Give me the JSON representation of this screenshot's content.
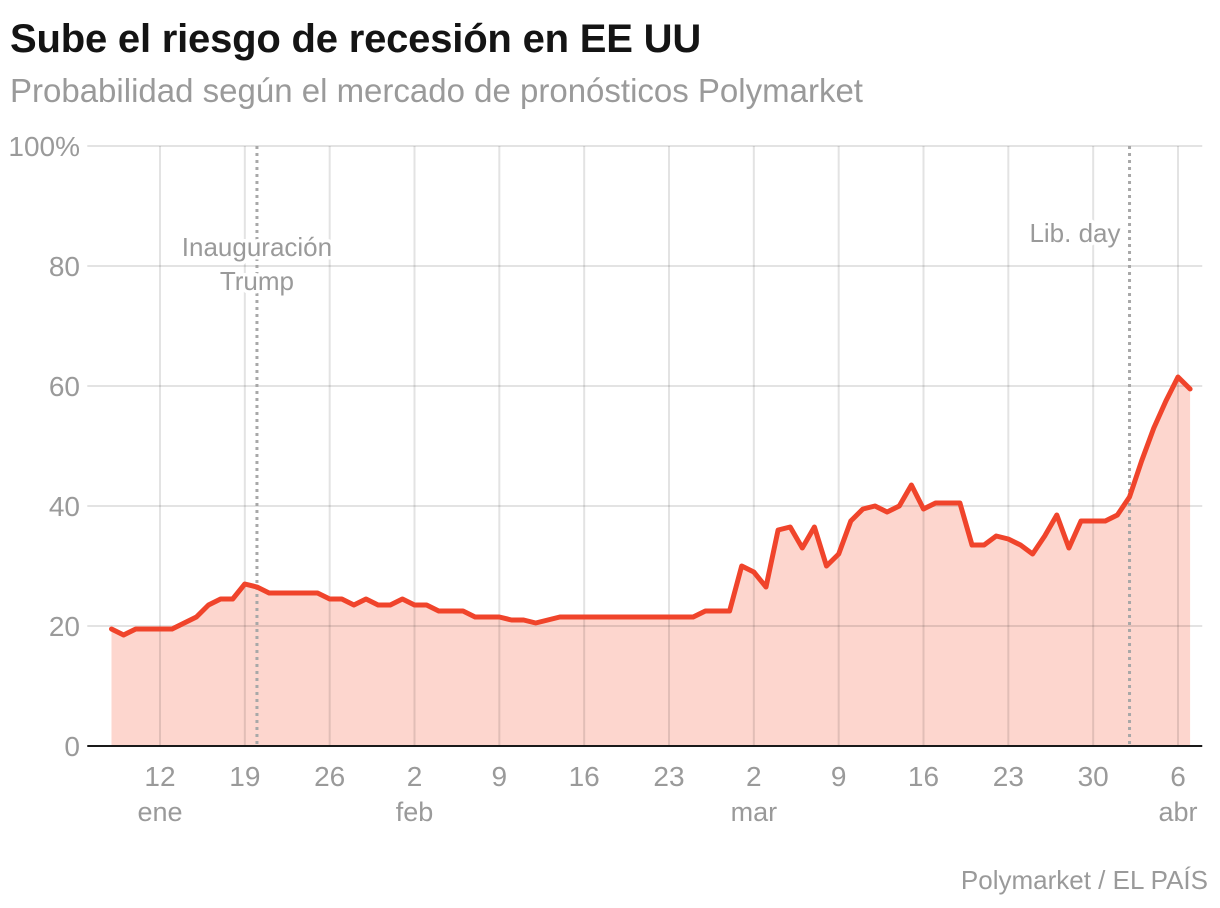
{
  "colors": {
    "title": "#141414",
    "text": "#9a9a9a",
    "line": "#f0442b",
    "area": "#fdd6ce",
    "grid": "#e3e3e3",
    "axis": "#1a1a1a",
    "annotation": "#a8a8a8"
  },
  "footer": {
    "source": "Polymarket / EL PAÍS"
  },
  "chart_data": {
    "type": "area",
    "title": "Sube el riesgo de recesión en EE UU",
    "subtitle": "Probabilidad según el mercado de pronósticos Polymarket",
    "ylim": [
      0,
      100
    ],
    "xlim": [
      "01-06",
      "04-08"
    ],
    "grid": {
      "horizontal": true,
      "vertical": true
    },
    "y_ticks": [
      {
        "value": 0,
        "label": "0"
      },
      {
        "value": 20,
        "label": "20"
      },
      {
        "value": 40,
        "label": "40"
      },
      {
        "value": 60,
        "label": "60"
      },
      {
        "value": 80,
        "label": "80"
      },
      {
        "value": 100,
        "label": "100%"
      }
    ],
    "x_ticks": [
      {
        "date": "01-12",
        "label": "12",
        "month": "ene"
      },
      {
        "date": "01-19",
        "label": "19"
      },
      {
        "date": "01-26",
        "label": "26"
      },
      {
        "date": "02-02",
        "label": "2",
        "month": "feb"
      },
      {
        "date": "02-09",
        "label": "9"
      },
      {
        "date": "02-16",
        "label": "16"
      },
      {
        "date": "02-23",
        "label": "23"
      },
      {
        "date": "03-02",
        "label": "2",
        "month": "mar"
      },
      {
        "date": "03-09",
        "label": "9"
      },
      {
        "date": "03-16",
        "label": "16"
      },
      {
        "date": "03-23",
        "label": "23"
      },
      {
        "date": "03-30",
        "label": "30"
      },
      {
        "date": "04-06",
        "label": "6",
        "month": "abr"
      }
    ],
    "annotations": [
      {
        "date": "01-20",
        "lines": [
          "Inauguración",
          "Trump"
        ]
      },
      {
        "date": "04-02",
        "lines": [
          "Lib. day"
        ]
      }
    ],
    "x": [
      "01-08",
      "01-09",
      "01-10",
      "01-11",
      "01-12",
      "01-13",
      "01-14",
      "01-15",
      "01-16",
      "01-17",
      "01-18",
      "01-19",
      "01-20",
      "01-21",
      "01-22",
      "01-23",
      "01-24",
      "01-25",
      "01-26",
      "01-27",
      "01-28",
      "01-29",
      "01-30",
      "01-31",
      "02-01",
      "02-02",
      "02-03",
      "02-04",
      "02-05",
      "02-06",
      "02-07",
      "02-08",
      "02-09",
      "02-10",
      "02-11",
      "02-12",
      "02-13",
      "02-14",
      "02-15",
      "02-16",
      "02-17",
      "02-18",
      "02-19",
      "02-20",
      "02-21",
      "02-22",
      "02-23",
      "02-24",
      "02-25",
      "02-26",
      "02-27",
      "02-28",
      "03-01",
      "03-02",
      "03-03",
      "03-04",
      "03-05",
      "03-06",
      "03-07",
      "03-08",
      "03-09",
      "03-10",
      "03-11",
      "03-12",
      "03-13",
      "03-14",
      "03-15",
      "03-16",
      "03-17",
      "03-18",
      "03-19",
      "03-20",
      "03-21",
      "03-22",
      "03-23",
      "03-24",
      "03-25",
      "03-26",
      "03-27",
      "03-28",
      "03-29",
      "03-30",
      "03-31",
      "04-01",
      "04-02",
      "04-03",
      "04-04",
      "04-05",
      "04-06",
      "04-07"
    ],
    "values": [
      19.5,
      18.5,
      19.5,
      19.5,
      19.5,
      19.5,
      20.5,
      21.5,
      23.5,
      24.5,
      24.5,
      27,
      26.5,
      25.5,
      25.5,
      25.5,
      25.5,
      25.5,
      24.5,
      24.5,
      23.5,
      24.5,
      23.5,
      23.5,
      24.5,
      23.5,
      23.5,
      22.5,
      22.5,
      22.5,
      21.5,
      21.5,
      21.5,
      21,
      21,
      20.5,
      21,
      21.5,
      21.5,
      21.5,
      21.5,
      21.5,
      21.5,
      21.5,
      21.5,
      21.5,
      21.5,
      21.5,
      21.5,
      22.5,
      22.5,
      22.5,
      30,
      29,
      26.5,
      36,
      36.5,
      33,
      36.5,
      30,
      32,
      37.5,
      39.5,
      40,
      39,
      40,
      43.5,
      39.5,
      40.5,
      40.5,
      40.5,
      33.5,
      33.5,
      35,
      34.5,
      33.5,
      32,
      35,
      38.5,
      33,
      37.5,
      37.5,
      37.5,
      38.5,
      41.5,
      47.5,
      53,
      57.5,
      61.5,
      59.5
    ]
  }
}
